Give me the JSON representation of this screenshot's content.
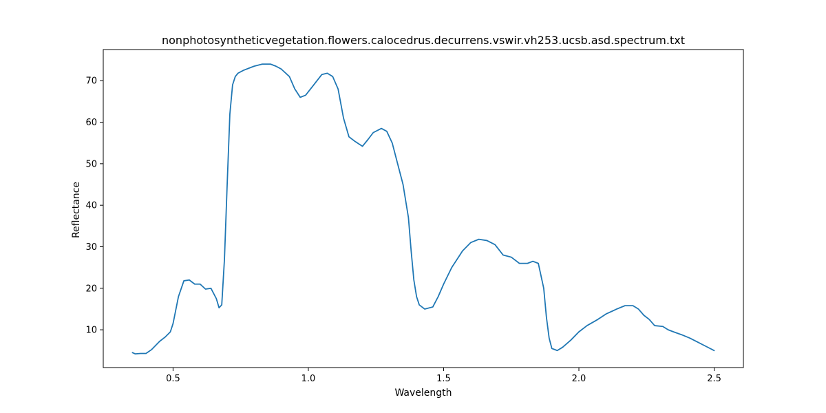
{
  "chart_data": {
    "type": "line",
    "title": "nonphotosyntheticvegetation.flowers.calocedrus.decurrens.vswir.vh253.ucsb.asd.spectrum.txt",
    "xlabel": "Wavelength",
    "ylabel": "Reflectance",
    "xlim": [
      0.242,
      2.608
    ],
    "ylim": [
      0.9,
      77.5
    ],
    "xticks": [
      0.5,
      1.0,
      1.5,
      2.0,
      2.5
    ],
    "xtick_labels": [
      "0.5",
      "1.0",
      "1.5",
      "2.0",
      "2.5"
    ],
    "yticks": [
      10,
      20,
      30,
      40,
      50,
      60,
      70
    ],
    "ytick_labels": [
      "10",
      "20",
      "30",
      "40",
      "50",
      "60",
      "70"
    ],
    "grid": false,
    "line_color": "#1f77b4",
    "series": [
      {
        "x": [
          0.35,
          0.36,
          0.38,
          0.4,
          0.42,
          0.45,
          0.47,
          0.49,
          0.5,
          0.52,
          0.54,
          0.56,
          0.58,
          0.6,
          0.62,
          0.64,
          0.66,
          0.67,
          0.68,
          0.69,
          0.7,
          0.71,
          0.72,
          0.73,
          0.74,
          0.76,
          0.78,
          0.8,
          0.83,
          0.86,
          0.88,
          0.9,
          0.93,
          0.95,
          0.97,
          0.99,
          1.02,
          1.05,
          1.07,
          1.09,
          1.11,
          1.13,
          1.15,
          1.17,
          1.2,
          1.22,
          1.24,
          1.27,
          1.29,
          1.31,
          1.33,
          1.35,
          1.37,
          1.38,
          1.39,
          1.4,
          1.41,
          1.43,
          1.46,
          1.48,
          1.5,
          1.53,
          1.57,
          1.6,
          1.63,
          1.66,
          1.69,
          1.72,
          1.75,
          1.78,
          1.81,
          1.83,
          1.85,
          1.87,
          1.88,
          1.89,
          1.9,
          1.92,
          1.94,
          1.97,
          2.0,
          2.03,
          2.07,
          2.1,
          2.14,
          2.17,
          2.2,
          2.22,
          2.24,
          2.26,
          2.28,
          2.31,
          2.33,
          2.35,
          2.38,
          2.41,
          2.44,
          2.47,
          2.5
        ],
        "y": [
          4.5,
          4.2,
          4.3,
          4.3,
          5.2,
          7.2,
          8.2,
          9.5,
          11.5,
          18.0,
          21.8,
          22.0,
          21.0,
          21.0,
          19.8,
          20.0,
          17.5,
          15.3,
          16.0,
          27.0,
          45.0,
          62.0,
          69.0,
          71.0,
          71.8,
          72.5,
          73.0,
          73.5,
          74.0,
          74.0,
          73.5,
          72.8,
          71.0,
          68.0,
          66.0,
          66.5,
          69.0,
          71.5,
          71.8,
          71.0,
          68.0,
          61.0,
          56.5,
          55.5,
          54.2,
          55.8,
          57.5,
          58.5,
          57.8,
          55.0,
          50.0,
          45.0,
          37.0,
          29.0,
          22.0,
          18.0,
          16.0,
          15.0,
          15.5,
          18.0,
          21.0,
          25.0,
          29.0,
          31.0,
          31.8,
          31.5,
          30.5,
          28.0,
          27.5,
          26.0,
          26.0,
          26.5,
          26.0,
          20.0,
          13.0,
          8.0,
          5.5,
          5.0,
          5.8,
          7.5,
          9.5,
          11.0,
          12.5,
          13.8,
          15.0,
          15.8,
          15.8,
          15.0,
          13.5,
          12.5,
          11.0,
          10.8,
          10.0,
          9.5,
          8.8,
          8.0,
          7.0,
          6.0,
          5.0
        ]
      }
    ]
  }
}
